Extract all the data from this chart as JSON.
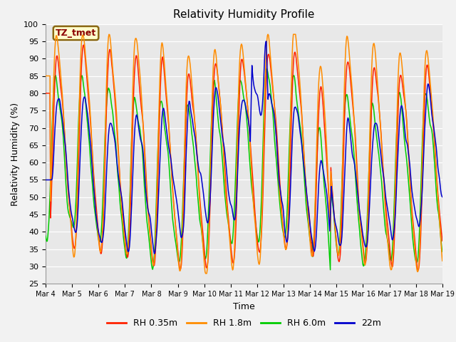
{
  "title": "Relativity Humidity Profile",
  "ylabel": "Relativity Humidity (%)",
  "xlabel": "Time",
  "ylim": [
    25,
    100
  ],
  "yticks": [
    25,
    30,
    35,
    40,
    45,
    50,
    55,
    60,
    65,
    70,
    75,
    80,
    85,
    90,
    95,
    100
  ],
  "annotation": "TZ_tmet",
  "annotation_color": "#8B0000",
  "annotation_bg": "#FFFFCC",
  "annotation_border": "#8B6914",
  "legend": [
    "RH 0.35m",
    "RH 1.8m",
    "RH 6.0m",
    "22m"
  ],
  "colors": [
    "#FF2200",
    "#FF8C00",
    "#00CC00",
    "#0000CC"
  ],
  "line_width": 1.1,
  "bg_color": "#E8E8E8",
  "grid_color": "#FFFFFF",
  "fig_bg": "#F2F2F2",
  "n_points": 720
}
